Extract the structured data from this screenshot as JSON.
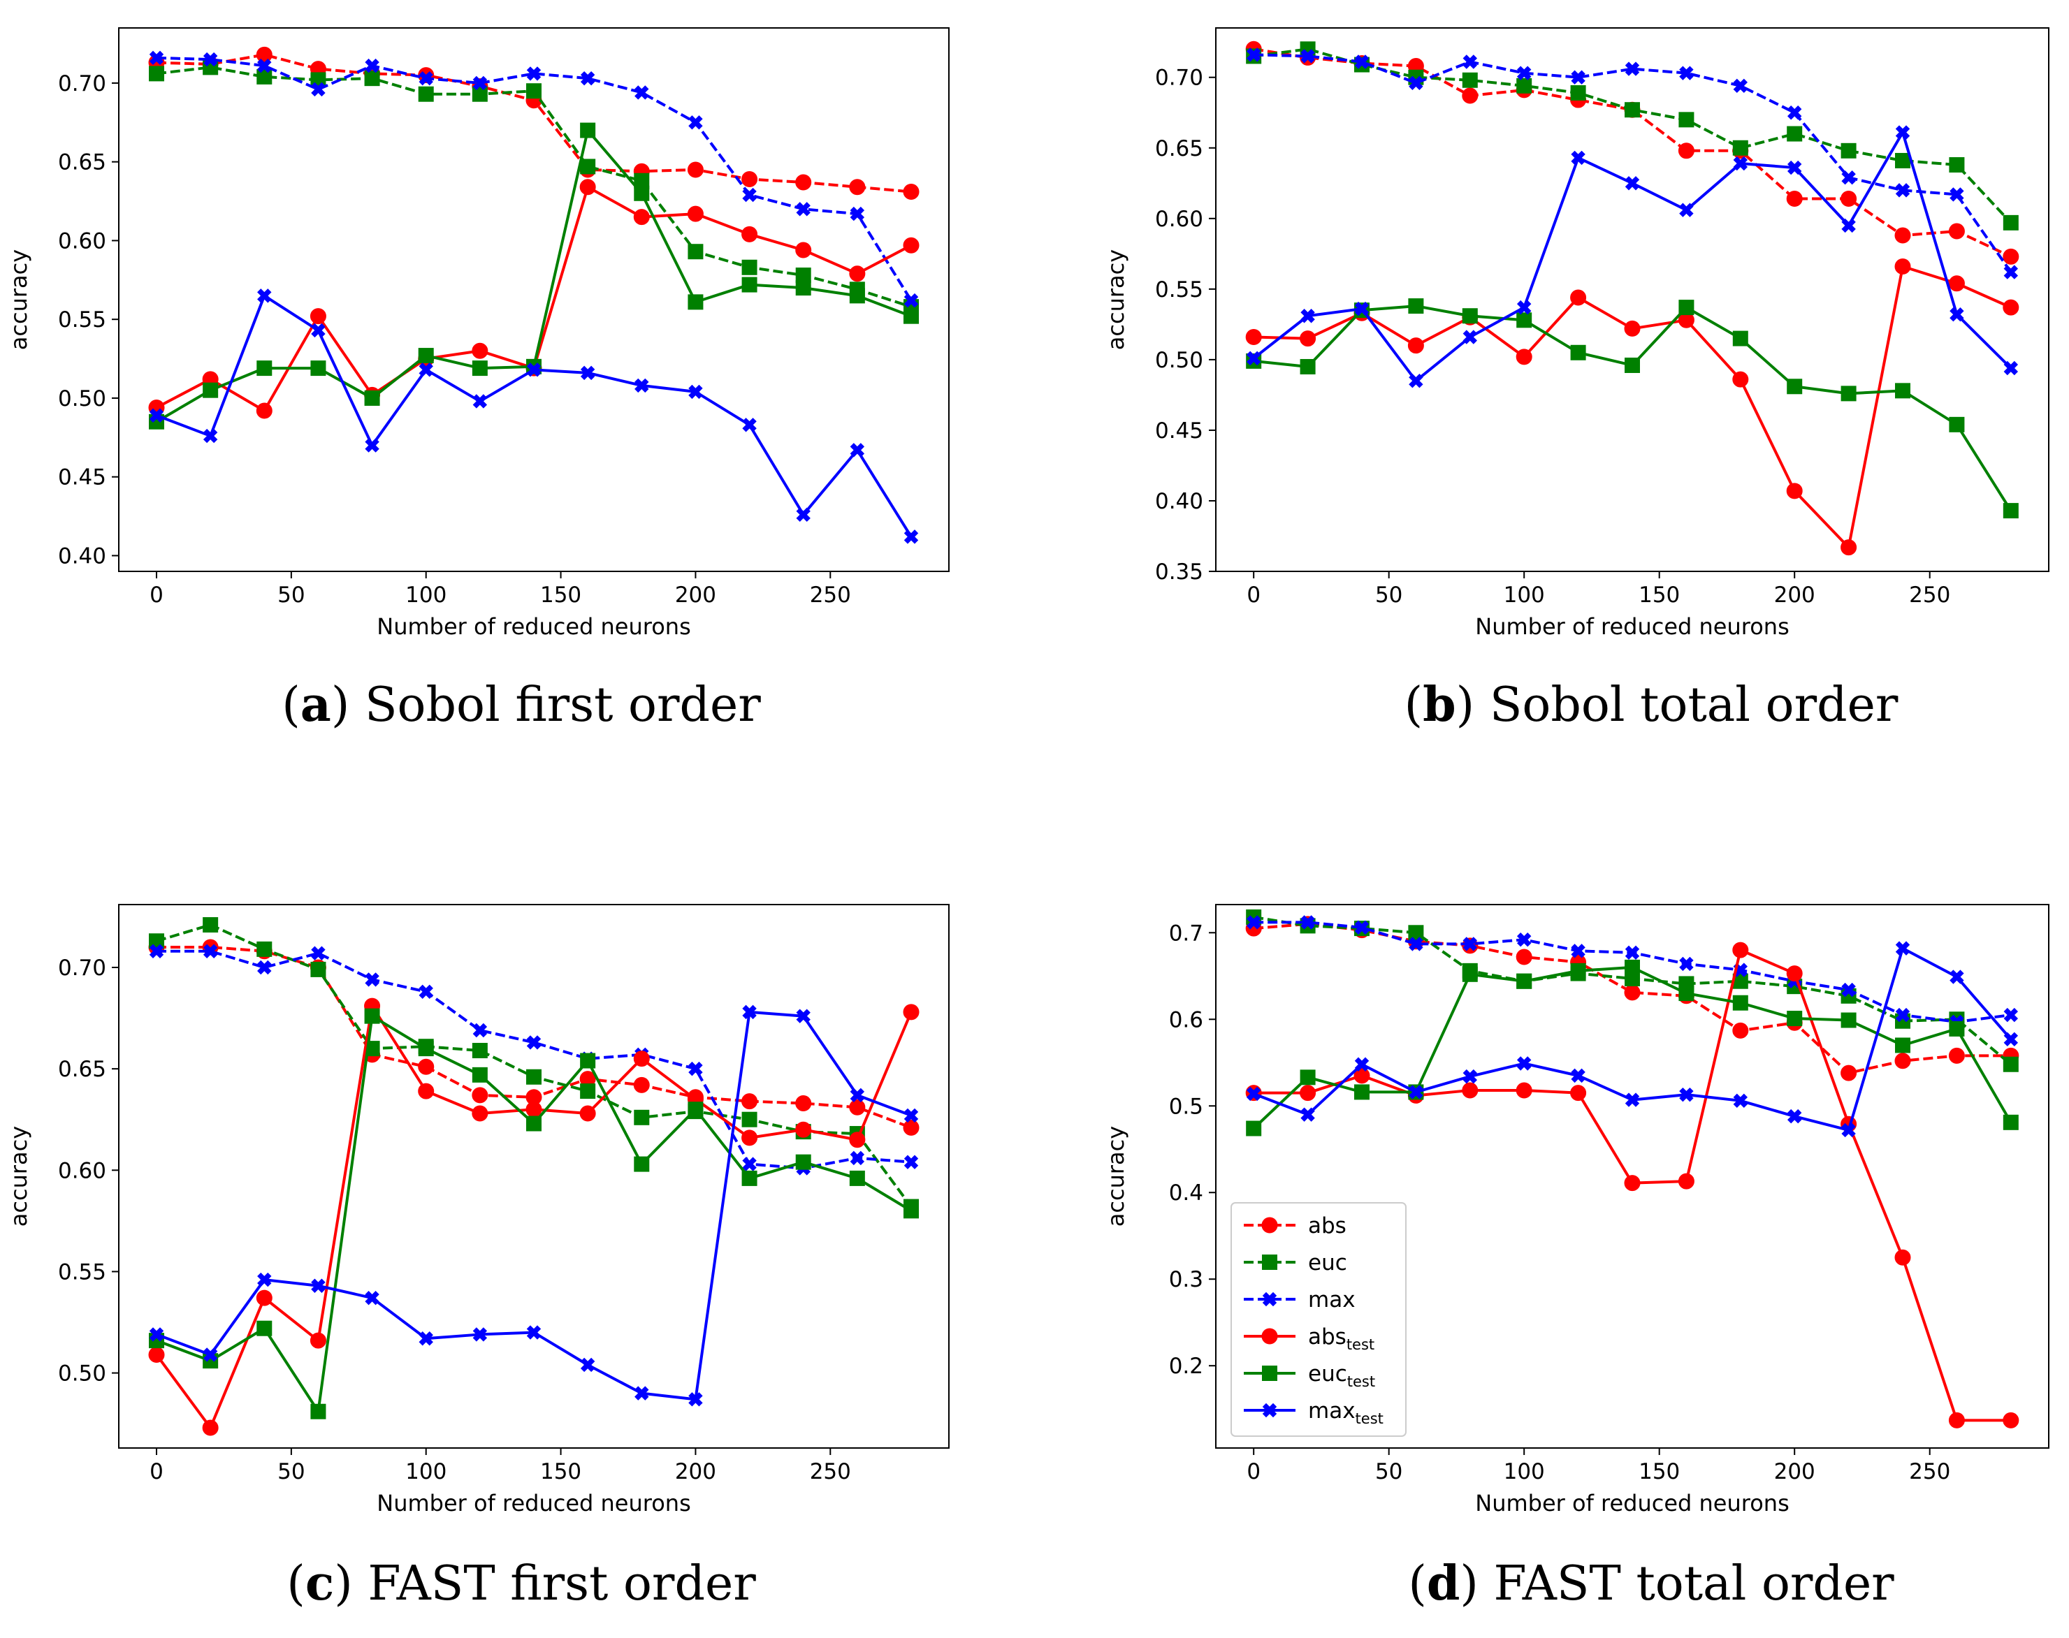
{
  "series_styles": {
    "abs": {
      "color": "#ff0000",
      "marker": "circle",
      "dashed": true
    },
    "euc": {
      "color": "#008000",
      "marker": "square",
      "dashed": true
    },
    "max": {
      "color": "#0000ff",
      "marker": "x",
      "dashed": true
    },
    "abs_test": {
      "color": "#ff0000",
      "marker": "circle",
      "dashed": false
    },
    "euc_test": {
      "color": "#008000",
      "marker": "square",
      "dashed": false
    },
    "max_test": {
      "color": "#0000ff",
      "marker": "x",
      "dashed": false
    }
  },
  "legend": {
    "placement": "lower-left of panel d",
    "entries": [
      {
        "key": "abs",
        "base": "abs",
        "sub": ""
      },
      {
        "key": "euc",
        "base": "euc",
        "sub": ""
      },
      {
        "key": "max",
        "base": "max",
        "sub": ""
      },
      {
        "key": "abs_test",
        "base": "abs",
        "sub": "test"
      },
      {
        "key": "euc_test",
        "base": "euc",
        "sub": "test"
      },
      {
        "key": "max_test",
        "base": "max",
        "sub": "test"
      }
    ]
  },
  "chart_data": [
    {
      "id": "a",
      "type": "line",
      "caption_letter": "a",
      "caption_text": " Sobol first order",
      "xlabel": "Number of reduced neurons",
      "ylabel": "accuracy",
      "xlim": [
        -14,
        294
      ],
      "ylim": [
        0.39,
        0.735
      ],
      "xticks": [
        0,
        50,
        100,
        150,
        200,
        250
      ],
      "xtick_labels": [
        "0",
        "50",
        "100",
        "150",
        "200",
        "250"
      ],
      "yticks": [
        0.4,
        0.45,
        0.5,
        0.55,
        0.6,
        0.65,
        0.7
      ],
      "ytick_labels": [
        "0.40",
        "0.45",
        "0.50",
        "0.55",
        "0.60",
        "0.65",
        "0.70"
      ],
      "x": [
        0,
        20,
        40,
        60,
        80,
        100,
        120,
        140,
        160,
        180,
        200,
        220,
        240,
        260,
        280
      ],
      "series": [
        {
          "name": "abs",
          "values": [
            0.713,
            0.712,
            0.718,
            0.709,
            0.706,
            0.705,
            0.698,
            0.689,
            0.645,
            0.644,
            0.645,
            0.639,
            0.637,
            0.634,
            0.631
          ]
        },
        {
          "name": "euc",
          "values": [
            0.706,
            0.71,
            0.704,
            0.702,
            0.703,
            0.693,
            0.693,
            0.695,
            0.647,
            0.638,
            0.593,
            0.583,
            0.578,
            0.569,
            0.558
          ]
        },
        {
          "name": "max",
          "values": [
            0.716,
            0.715,
            0.711,
            0.696,
            0.711,
            0.703,
            0.7,
            0.706,
            0.703,
            0.694,
            0.675,
            0.629,
            0.62,
            0.617,
            0.562
          ]
        },
        {
          "name": "abs_test",
          "values": [
            0.494,
            0.512,
            0.492,
            0.552,
            0.502,
            0.525,
            0.53,
            0.519,
            0.634,
            0.615,
            0.617,
            0.604,
            0.594,
            0.579,
            0.597
          ]
        },
        {
          "name": "euc_test",
          "values": [
            0.485,
            0.505,
            0.519,
            0.519,
            0.5,
            0.527,
            0.519,
            0.52,
            0.67,
            0.63,
            0.561,
            0.572,
            0.57,
            0.565,
            0.552
          ]
        },
        {
          "name": "max_test",
          "values": [
            0.489,
            0.476,
            0.565,
            0.543,
            0.47,
            0.518,
            0.498,
            0.518,
            0.516,
            0.508,
            0.504,
            0.483,
            0.426,
            0.467,
            0.412
          ]
        }
      ]
    },
    {
      "id": "b",
      "type": "line",
      "caption_letter": "b",
      "caption_text": " Sobol total order",
      "xlabel": "Number of reduced neurons",
      "ylabel": "accuracy",
      "xlim": [
        -14,
        294
      ],
      "ylim": [
        0.35,
        0.735
      ],
      "xticks": [
        0,
        50,
        100,
        150,
        200,
        250
      ],
      "xtick_labels": [
        "0",
        "50",
        "100",
        "150",
        "200",
        "250"
      ],
      "yticks": [
        0.35,
        0.4,
        0.45,
        0.5,
        0.55,
        0.6,
        0.65,
        0.7
      ],
      "ytick_labels": [
        "0.35",
        "0.40",
        "0.45",
        "0.50",
        "0.55",
        "0.60",
        "0.65",
        "0.70"
      ],
      "x": [
        0,
        20,
        40,
        60,
        80,
        100,
        120,
        140,
        160,
        180,
        200,
        220,
        240,
        260,
        280
      ],
      "series": [
        {
          "name": "abs",
          "values": [
            0.72,
            0.714,
            0.71,
            0.708,
            0.687,
            0.691,
            0.684,
            0.677,
            0.648,
            0.648,
            0.614,
            0.614,
            0.588,
            0.591,
            0.573
          ]
        },
        {
          "name": "euc",
          "values": [
            0.715,
            0.72,
            0.709,
            0.7,
            0.698,
            0.694,
            0.689,
            0.677,
            0.67,
            0.65,
            0.66,
            0.648,
            0.641,
            0.638,
            0.597
          ]
        },
        {
          "name": "max",
          "values": [
            0.716,
            0.715,
            0.711,
            0.696,
            0.711,
            0.703,
            0.7,
            0.706,
            0.703,
            0.694,
            0.675,
            0.629,
            0.62,
            0.617,
            0.562
          ]
        },
        {
          "name": "abs_test",
          "values": [
            0.516,
            0.515,
            0.533,
            0.51,
            0.53,
            0.502,
            0.544,
            0.522,
            0.528,
            0.486,
            0.407,
            0.367,
            0.566,
            0.554,
            0.537
          ]
        },
        {
          "name": "euc_test",
          "values": [
            0.499,
            0.495,
            0.535,
            0.538,
            0.531,
            0.528,
            0.505,
            0.496,
            0.537,
            0.515,
            0.481,
            0.476,
            0.478,
            0.454,
            0.393
          ]
        },
        {
          "name": "max_test",
          "values": [
            0.501,
            0.531,
            0.536,
            0.485,
            0.516,
            0.537,
            0.643,
            0.625,
            0.606,
            0.639,
            0.636,
            0.595,
            0.661,
            0.532,
            0.494
          ]
        }
      ]
    },
    {
      "id": "c",
      "type": "line",
      "caption_letter": "c",
      "caption_text": " FAST first order",
      "xlabel": "Number of reduced neurons",
      "ylabel": "accuracy",
      "xlim": [
        -14,
        294
      ],
      "ylim": [
        0.463,
        0.731
      ],
      "xticks": [
        0,
        50,
        100,
        150,
        200,
        250
      ],
      "xtick_labels": [
        "0",
        "50",
        "100",
        "150",
        "200",
        "250"
      ],
      "yticks": [
        0.5,
        0.55,
        0.6,
        0.65,
        0.7
      ],
      "ytick_labels": [
        "0.50",
        "0.55",
        "0.60",
        "0.65",
        "0.70"
      ],
      "x": [
        0,
        20,
        40,
        60,
        80,
        100,
        120,
        140,
        160,
        180,
        200,
        220,
        240,
        260,
        280
      ],
      "series": [
        {
          "name": "abs",
          "values": [
            0.71,
            0.71,
            0.708,
            0.7,
            0.657,
            0.651,
            0.637,
            0.636,
            0.645,
            0.642,
            0.636,
            0.634,
            0.633,
            0.631,
            0.621
          ]
        },
        {
          "name": "euc",
          "values": [
            0.713,
            0.721,
            0.709,
            0.699,
            0.66,
            0.661,
            0.659,
            0.646,
            0.639,
            0.626,
            0.629,
            0.625,
            0.619,
            0.618,
            0.582
          ]
        },
        {
          "name": "max",
          "values": [
            0.708,
            0.708,
            0.7,
            0.707,
            0.694,
            0.688,
            0.669,
            0.663,
            0.655,
            0.657,
            0.65,
            0.603,
            0.601,
            0.606,
            0.604
          ]
        },
        {
          "name": "abs_test",
          "values": [
            0.509,
            0.473,
            0.537,
            0.516,
            0.681,
            0.639,
            0.628,
            0.63,
            0.628,
            0.655,
            0.635,
            0.616,
            0.62,
            0.615,
            0.678
          ]
        },
        {
          "name": "euc_test",
          "values": [
            0.516,
            0.506,
            0.522,
            0.481,
            0.676,
            0.66,
            0.647,
            0.623,
            0.654,
            0.603,
            0.63,
            0.596,
            0.604,
            0.596,
            0.58
          ]
        },
        {
          "name": "max_test",
          "values": [
            0.519,
            0.509,
            0.546,
            0.543,
            0.537,
            0.517,
            0.519,
            0.52,
            0.504,
            0.49,
            0.487,
            0.678,
            0.676,
            0.637,
            0.627
          ]
        }
      ]
    },
    {
      "id": "d",
      "type": "line",
      "caption_letter": "d",
      "caption_text": " FAST total order",
      "xlabel": "Number of reduced neurons",
      "ylabel": "accuracy",
      "xlim": [
        -14,
        294
      ],
      "ylim": [
        0.105,
        0.7325
      ],
      "xticks": [
        0,
        50,
        100,
        150,
        200,
        250
      ],
      "xtick_labels": [
        "0",
        "50",
        "100",
        "150",
        "200",
        "250"
      ],
      "yticks": [
        0.2,
        0.3,
        0.4,
        0.5,
        0.6,
        0.7
      ],
      "ytick_labels": [
        "0.2",
        "0.3",
        "0.4",
        "0.5",
        "0.6",
        "0.7"
      ],
      "x": [
        0,
        20,
        40,
        60,
        80,
        100,
        120,
        140,
        160,
        180,
        200,
        220,
        240,
        260,
        280
      ],
      "series": [
        {
          "name": "abs",
          "values": [
            0.705,
            0.71,
            0.703,
            0.69,
            0.685,
            0.672,
            0.666,
            0.631,
            0.627,
            0.587,
            0.596,
            0.538,
            0.552,
            0.558,
            0.558
          ]
        },
        {
          "name": "euc",
          "values": [
            0.718,
            0.708,
            0.705,
            0.7,
            0.656,
            0.644,
            0.653,
            0.647,
            0.641,
            0.644,
            0.638,
            0.627,
            0.598,
            0.6,
            0.548
          ]
        },
        {
          "name": "max",
          "values": [
            0.712,
            0.712,
            0.706,
            0.687,
            0.687,
            0.692,
            0.679,
            0.677,
            0.664,
            0.657,
            0.644,
            0.634,
            0.605,
            0.597,
            0.605
          ]
        },
        {
          "name": "abs_test",
          "values": [
            0.515,
            0.515,
            0.535,
            0.512,
            0.518,
            0.518,
            0.515,
            0.411,
            0.413,
            0.68,
            0.653,
            0.479,
            0.325,
            0.137,
            0.137
          ]
        },
        {
          "name": "euc_test",
          "values": [
            0.474,
            0.533,
            0.516,
            0.516,
            0.652,
            0.644,
            0.656,
            0.66,
            0.63,
            0.619,
            0.601,
            0.599,
            0.57,
            0.589,
            0.481
          ]
        },
        {
          "name": "max_test",
          "values": [
            0.514,
            0.49,
            0.548,
            0.516,
            0.534,
            0.549,
            0.535,
            0.507,
            0.513,
            0.506,
            0.488,
            0.472,
            0.682,
            0.649,
            0.577
          ]
        }
      ]
    }
  ]
}
